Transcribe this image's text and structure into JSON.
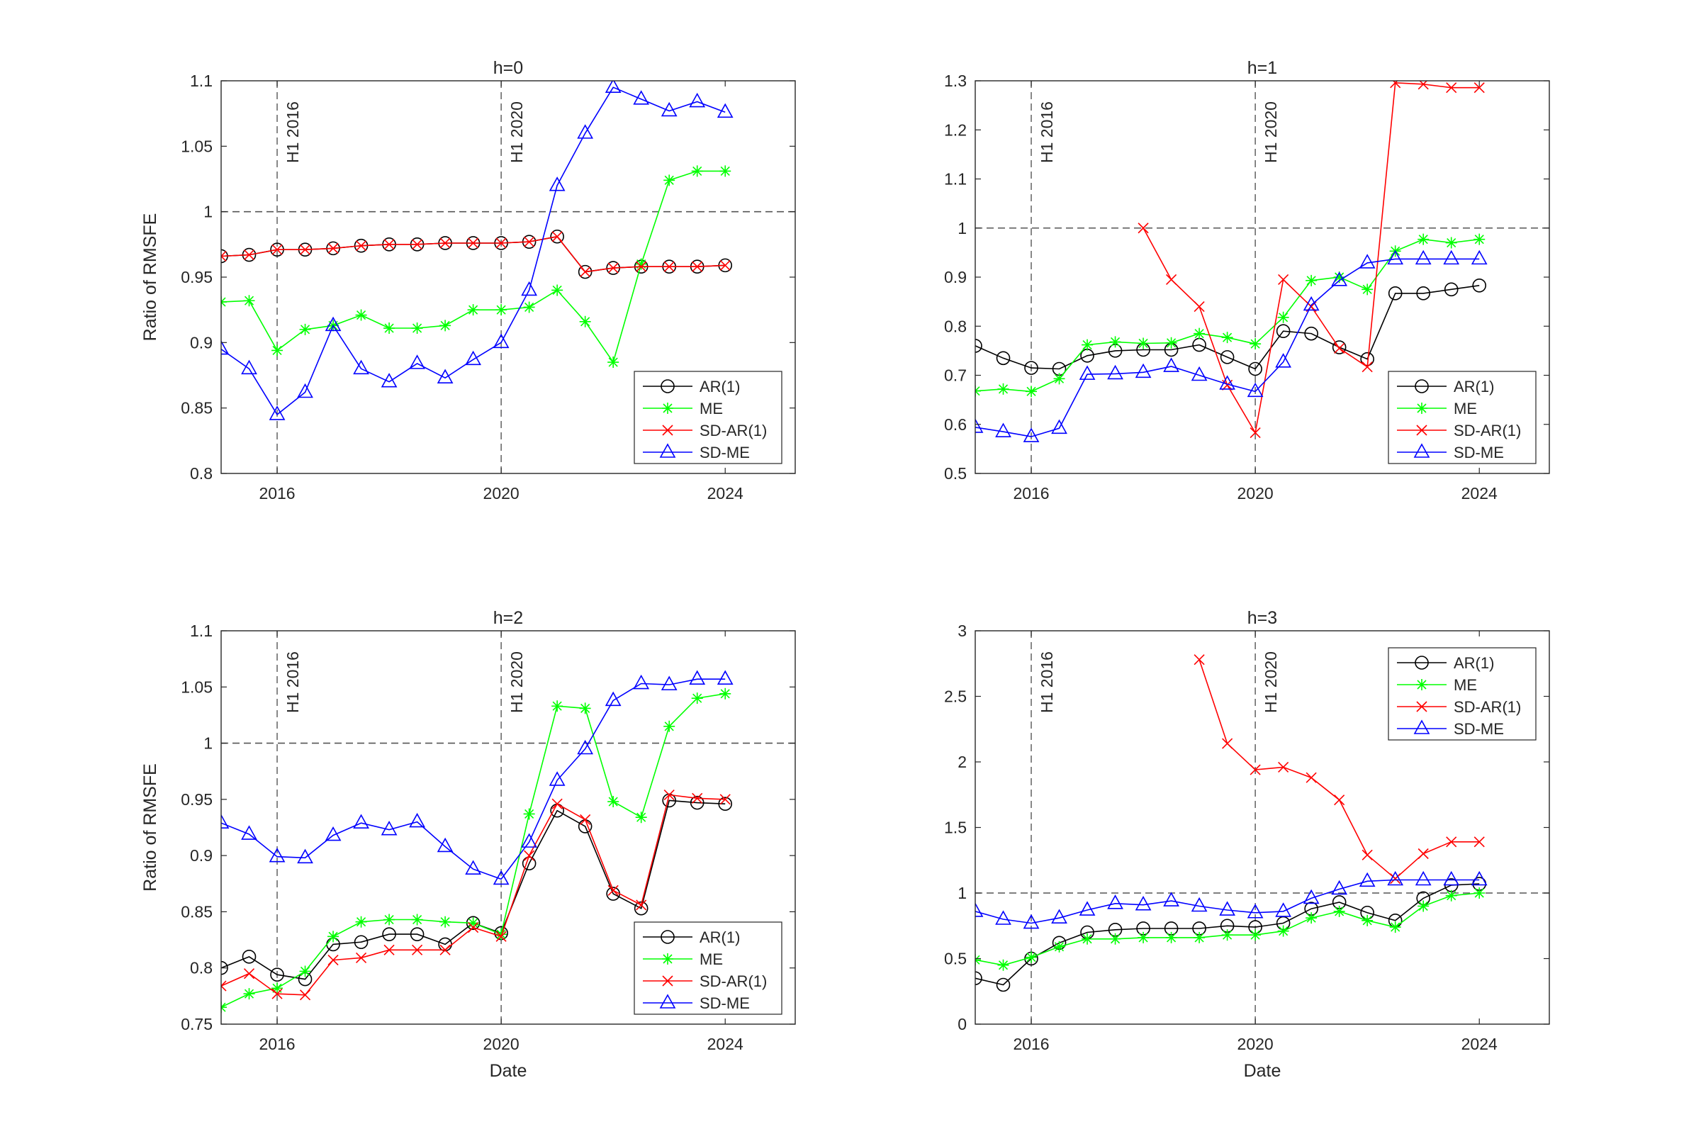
{
  "figure": {
    "description_label": "Ratio of RMSFE comparison"
  },
  "chart_data": [
    {
      "type": "line",
      "title": "h=0",
      "xlabel": "",
      "ylabel": "Ratio of RMSFE",
      "xlim": [
        2015,
        2025.25
      ],
      "ylim": [
        0.8,
        1.1
      ],
      "xticks": [
        2016,
        2020,
        2024
      ],
      "yticks": [
        0.8,
        0.85,
        0.9,
        0.95,
        1,
        1.05,
        1.1
      ],
      "ytick_labels": [
        "0.8",
        "0.85",
        "0.9",
        "0.95",
        "1",
        "1.05",
        "1.1"
      ],
      "reference_line": 1,
      "vlines": [
        {
          "x": 2016,
          "label": "H1 2016"
        },
        {
          "x": 2020,
          "label": "H1 2020"
        }
      ],
      "legend_position": "bottom-right",
      "series": [
        {
          "name": "AR(1)",
          "color": "#000000",
          "marker": "circle",
          "x": [
            2015,
            2015.5,
            2016,
            2016.5,
            2017,
            2017.5,
            2018,
            2018.5,
            2019,
            2019.5,
            2020,
            2020.5,
            2021,
            2021.5,
            2022,
            2022.5,
            2023,
            2023.5,
            2024
          ],
          "values": [
            0.966,
            0.967,
            0.971,
            0.971,
            0.972,
            0.974,
            0.975,
            0.975,
            0.976,
            0.976,
            0.976,
            0.977,
            0.981,
            0.954,
            0.957,
            0.958,
            0.958,
            0.958,
            0.959
          ]
        },
        {
          "name": "ME",
          "color": "#00ff00",
          "marker": "star",
          "x": [
            2015,
            2015.5,
            2016,
            2016.5,
            2017,
            2017.5,
            2018,
            2018.5,
            2019,
            2019.5,
            2020,
            2020.5,
            2021,
            2021.5,
            2022,
            2022.5,
            2023,
            2023.5,
            2024
          ],
          "values": [
            0.931,
            0.932,
            0.894,
            0.91,
            0.913,
            0.921,
            0.911,
            0.911,
            0.913,
            0.925,
            0.925,
            0.927,
            0.94,
            0.916,
            0.885,
            0.96,
            1.024,
            1.031,
            1.031
          ]
        },
        {
          "name": "SD-AR(1)",
          "color": "#ff0000",
          "marker": "x",
          "x": [
            2015,
            2015.5,
            2016,
            2016.5,
            2017,
            2017.5,
            2018,
            2018.5,
            2019,
            2019.5,
            2020,
            2020.5,
            2021,
            2021.5,
            2022,
            2022.5,
            2023,
            2023.5,
            2024
          ],
          "values": [
            0.966,
            0.967,
            0.971,
            0.971,
            0.972,
            0.974,
            0.975,
            0.975,
            0.976,
            0.976,
            0.976,
            0.977,
            0.981,
            0.954,
            0.957,
            0.958,
            0.958,
            0.958,
            0.959
          ]
        },
        {
          "name": "SD-ME",
          "color": "#0000ff",
          "marker": "triangle",
          "x": [
            2015,
            2015.5,
            2016,
            2016.5,
            2017,
            2017.5,
            2018,
            2018.5,
            2019,
            2019.5,
            2020,
            2020.5,
            2021,
            2021.5,
            2022,
            2022.5,
            2023,
            2023.5,
            2024
          ],
          "values": [
            0.895,
            0.88,
            0.845,
            0.862,
            0.913,
            0.88,
            0.87,
            0.884,
            0.873,
            0.887,
            0.9,
            0.94,
            1.02,
            1.06,
            1.095,
            1.086,
            1.077,
            1.084,
            1.076
          ]
        }
      ]
    },
    {
      "type": "line",
      "title": "h=1",
      "xlabel": "",
      "ylabel": "",
      "xlim": [
        2015,
        2025.25
      ],
      "ylim": [
        0.5,
        1.3
      ],
      "xticks": [
        2016,
        2020,
        2024
      ],
      "yticks": [
        0.5,
        0.6,
        0.7,
        0.8,
        0.9,
        1,
        1.1,
        1.2,
        1.3
      ],
      "ytick_labels": [
        "0.5",
        "0.6",
        "0.7",
        "0.8",
        "0.9",
        "1",
        "1.1",
        "1.2",
        "1.3"
      ],
      "reference_line": 1,
      "vlines": [
        {
          "x": 2016,
          "label": "H1 2016"
        },
        {
          "x": 2020,
          "label": "H1 2020"
        }
      ],
      "legend_position": "bottom-right",
      "series": [
        {
          "name": "AR(1)",
          "color": "#000000",
          "marker": "circle",
          "x": [
            2015,
            2015.5,
            2016,
            2016.5,
            2017,
            2017.5,
            2018,
            2018.5,
            2019,
            2019.5,
            2020,
            2020.5,
            2021,
            2021.5,
            2022,
            2022.5,
            2023,
            2023.5,
            2024
          ],
          "values": [
            0.76,
            0.735,
            0.715,
            0.713,
            0.74,
            0.75,
            0.752,
            0.752,
            0.762,
            0.737,
            0.713,
            0.79,
            0.785,
            0.757,
            0.733,
            0.867,
            0.867,
            0.875,
            0.883
          ]
        },
        {
          "name": "ME",
          "color": "#00ff00",
          "marker": "star",
          "x": [
            2015,
            2015.5,
            2016,
            2016.5,
            2017,
            2017.5,
            2018,
            2018.5,
            2019,
            2019.5,
            2020,
            2020.5,
            2021,
            2021.5,
            2022,
            2022.5,
            2023,
            2023.5,
            2024
          ],
          "values": [
            0.668,
            0.672,
            0.667,
            0.693,
            0.762,
            0.768,
            0.765,
            0.766,
            0.785,
            0.777,
            0.764,
            0.818,
            0.893,
            0.9,
            0.875,
            0.953,
            0.977,
            0.97,
            0.977
          ]
        },
        {
          "name": "SD-AR(1)",
          "color": "#ff0000",
          "marker": "x",
          "x": [
            2018,
            2018.5,
            2019,
            2019.5,
            2020,
            2020.5,
            2021,
            2021.5,
            2022,
            2022.5,
            2023,
            2023.5,
            2024
          ],
          "values": [
            1.0,
            0.895,
            0.84,
            0.68,
            0.583,
            0.895,
            0.84,
            0.755,
            0.717,
            1.296,
            1.293,
            1.286,
            1.286
          ]
        },
        {
          "name": "SD-ME",
          "color": "#0000ff",
          "marker": "triangle",
          "x": [
            2015,
            2015.5,
            2016,
            2016.5,
            2017,
            2017.5,
            2018,
            2018.5,
            2019,
            2019.5,
            2020,
            2020.5,
            2021,
            2021.5,
            2022,
            2022.5,
            2023,
            2023.5,
            2024
          ],
          "values": [
            0.594,
            0.585,
            0.575,
            0.592,
            0.702,
            0.703,
            0.706,
            0.718,
            0.7,
            0.682,
            0.667,
            0.727,
            0.843,
            0.893,
            0.929,
            0.937,
            0.937,
            0.937,
            0.937
          ]
        }
      ]
    },
    {
      "type": "line",
      "title": "h=2",
      "xlabel": "Date",
      "ylabel": "Ratio of RMSFE",
      "xlim": [
        2015,
        2025.25
      ],
      "ylim": [
        0.75,
        1.1
      ],
      "xticks": [
        2016,
        2020,
        2024
      ],
      "yticks": [
        0.75,
        0.8,
        0.85,
        0.9,
        0.95,
        1,
        1.05,
        1.1
      ],
      "ytick_labels": [
        "0.75",
        "0.8",
        "0.85",
        "0.9",
        "0.95",
        "1",
        "1.05",
        "1.1"
      ],
      "reference_line": 1,
      "vlines": [
        {
          "x": 2016,
          "label": "H1 2016"
        },
        {
          "x": 2020,
          "label": "H1 2020"
        }
      ],
      "legend_position": "bottom-right",
      "series": [
        {
          "name": "AR(1)",
          "color": "#000000",
          "marker": "circle",
          "x": [
            2015,
            2015.5,
            2016,
            2016.5,
            2017,
            2017.5,
            2018,
            2018.5,
            2019,
            2019.5,
            2020,
            2020.5,
            2021,
            2021.5,
            2022,
            2022.5,
            2023,
            2023.5,
            2024
          ],
          "values": [
            0.8,
            0.81,
            0.794,
            0.79,
            0.821,
            0.823,
            0.83,
            0.83,
            0.821,
            0.84,
            0.831,
            0.893,
            0.94,
            0.926,
            0.866,
            0.853,
            0.949,
            0.947,
            0.946
          ]
        },
        {
          "name": "ME",
          "color": "#00ff00",
          "marker": "star",
          "x": [
            2015,
            2015.5,
            2016,
            2016.5,
            2017,
            2017.5,
            2018,
            2018.5,
            2019,
            2019.5,
            2020,
            2020.5,
            2021,
            2021.5,
            2022,
            2022.5,
            2023,
            2023.5,
            2024
          ],
          "values": [
            0.765,
            0.777,
            0.782,
            0.797,
            0.828,
            0.841,
            0.843,
            0.843,
            0.841,
            0.84,
            0.83,
            0.937,
            1.033,
            1.031,
            0.948,
            0.934,
            1.015,
            1.04,
            1.044
          ]
        },
        {
          "name": "SD-AR(1)",
          "color": "#ff0000",
          "marker": "x",
          "x": [
            2015,
            2015.5,
            2016,
            2016.5,
            2017,
            2017.5,
            2018,
            2018.5,
            2019,
            2019.5,
            2020,
            2020.5,
            2021,
            2021.5,
            2022,
            2022.5,
            2023,
            2023.5,
            2024
          ],
          "values": [
            0.784,
            0.795,
            0.777,
            0.776,
            0.807,
            0.809,
            0.816,
            0.816,
            0.816,
            0.836,
            0.828,
            0.9,
            0.946,
            0.932,
            0.869,
            0.856,
            0.954,
            0.951,
            0.95
          ]
        },
        {
          "name": "SD-ME",
          "color": "#0000ff",
          "marker": "triangle",
          "x": [
            2015,
            2015.5,
            2016,
            2016.5,
            2017,
            2017.5,
            2018,
            2018.5,
            2019,
            2019.5,
            2020,
            2020.5,
            2021,
            2021.5,
            2022,
            2022.5,
            2023,
            2023.5,
            2024
          ],
          "values": [
            0.929,
            0.919,
            0.899,
            0.898,
            0.918,
            0.929,
            0.923,
            0.93,
            0.908,
            0.888,
            0.879,
            0.912,
            0.967,
            0.995,
            1.038,
            1.053,
            1.052,
            1.057,
            1.057
          ]
        }
      ]
    },
    {
      "type": "line",
      "title": "h=3",
      "xlabel": "Date",
      "ylabel": "",
      "xlim": [
        2015,
        2025.25
      ],
      "ylim": [
        0,
        3
      ],
      "xticks": [
        2016,
        2020,
        2024
      ],
      "yticks": [
        0,
        0.5,
        1,
        1.5,
        2,
        2.5,
        3
      ],
      "ytick_labels": [
        "0",
        "0.5",
        "1",
        "1.5",
        "2",
        "2.5",
        "3"
      ],
      "reference_line": 1,
      "vlines": [
        {
          "x": 2016,
          "label": "H1 2016"
        },
        {
          "x": 2020,
          "label": "H1 2020"
        }
      ],
      "legend_position": "top-right",
      "series": [
        {
          "name": "AR(1)",
          "color": "#000000",
          "marker": "circle",
          "x": [
            2015,
            2015.5,
            2016,
            2016.5,
            2017,
            2017.5,
            2018,
            2018.5,
            2019,
            2019.5,
            2020,
            2020.5,
            2021,
            2021.5,
            2022,
            2022.5,
            2023,
            2023.5,
            2024
          ],
          "values": [
            0.35,
            0.3,
            0.5,
            0.62,
            0.7,
            0.72,
            0.73,
            0.73,
            0.73,
            0.75,
            0.74,
            0.77,
            0.88,
            0.93,
            0.85,
            0.79,
            0.96,
            1.06,
            1.07
          ]
        },
        {
          "name": "ME",
          "color": "#00ff00",
          "marker": "star",
          "x": [
            2015,
            2015.5,
            2016,
            2016.5,
            2017,
            2017.5,
            2018,
            2018.5,
            2019,
            2019.5,
            2020,
            2020.5,
            2021,
            2021.5,
            2022,
            2022.5,
            2023,
            2023.5,
            2024
          ],
          "values": [
            0.49,
            0.45,
            0.51,
            0.59,
            0.65,
            0.65,
            0.66,
            0.66,
            0.66,
            0.68,
            0.68,
            0.71,
            0.81,
            0.86,
            0.79,
            0.74,
            0.9,
            0.98,
            1.0
          ]
        },
        {
          "name": "SD-AR(1)",
          "color": "#ff0000",
          "marker": "x",
          "x": [
            2019,
            2019.5,
            2020,
            2020.5,
            2021,
            2021.5,
            2022,
            2022.5,
            2023,
            2023.5,
            2024
          ],
          "values": [
            2.78,
            2.14,
            1.94,
            1.96,
            1.88,
            1.71,
            1.29,
            1.11,
            1.3,
            1.39,
            1.39
          ]
        },
        {
          "name": "SD-ME",
          "color": "#0000ff",
          "marker": "triangle",
          "x": [
            2015,
            2015.5,
            2016,
            2016.5,
            2017,
            2017.5,
            2018,
            2018.5,
            2019,
            2019.5,
            2020,
            2020.5,
            2021,
            2021.5,
            2022,
            2022.5,
            2023,
            2023.5,
            2024
          ],
          "values": [
            0.86,
            0.8,
            0.77,
            0.81,
            0.87,
            0.92,
            0.91,
            0.94,
            0.9,
            0.87,
            0.85,
            0.86,
            0.96,
            1.03,
            1.09,
            1.1,
            1.1,
            1.1,
            1.1
          ]
        }
      ]
    }
  ]
}
